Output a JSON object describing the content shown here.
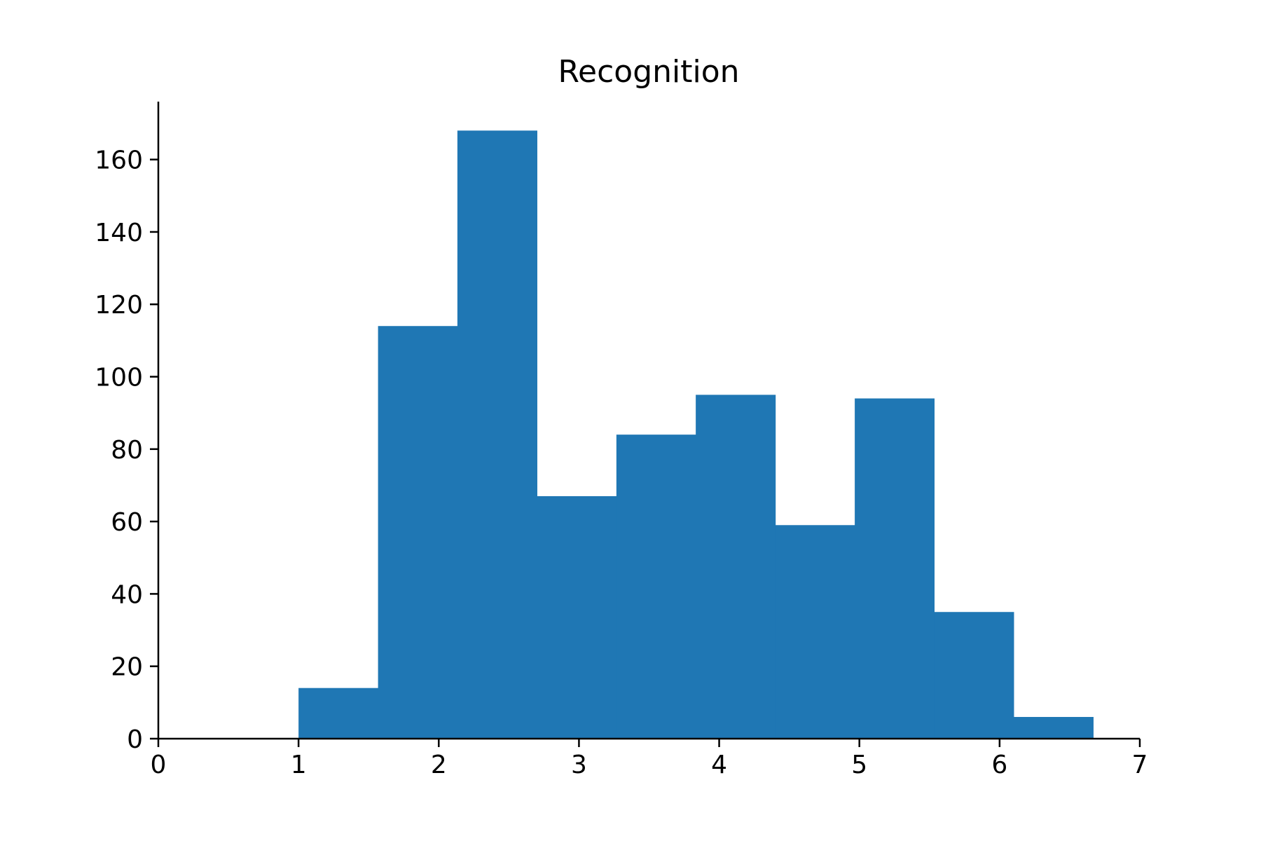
{
  "chart_data": {
    "type": "bar",
    "title": "Recognition",
    "xlabel": "",
    "ylabel": "",
    "xlim": [
      0,
      7
    ],
    "ylim": [
      0,
      176
    ],
    "xticks": [
      0,
      1,
      2,
      3,
      4,
      5,
      6,
      7
    ],
    "yticks": [
      0,
      20,
      40,
      60,
      80,
      100,
      120,
      140,
      160
    ],
    "grid": false,
    "bins": [
      {
        "x0": 1.0,
        "x1": 1.567,
        "count": 14
      },
      {
        "x0": 1.567,
        "x1": 2.133,
        "count": 114
      },
      {
        "x0": 2.133,
        "x1": 2.7,
        "count": 168
      },
      {
        "x0": 2.7,
        "x1": 3.267,
        "count": 67
      },
      {
        "x0": 3.267,
        "x1": 3.833,
        "count": 84
      },
      {
        "x0": 3.833,
        "x1": 4.4,
        "count": 95
      },
      {
        "x0": 4.4,
        "x1": 4.967,
        "count": 59
      },
      {
        "x0": 4.967,
        "x1": 5.533,
        "count": 94
      },
      {
        "x0": 5.533,
        "x1": 6.1,
        "count": 35
      },
      {
        "x0": 6.1,
        "x1": 6.667,
        "count": 6
      }
    ],
    "colors": {
      "bar": "#1f77b4",
      "axis": "#000000"
    }
  }
}
